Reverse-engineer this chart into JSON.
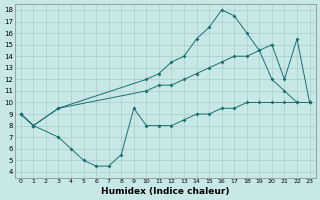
{
  "background_color": "#c8e8e8",
  "grid_color": "#a8cccc",
  "line_color": "#1a7070",
  "xlabel": "Humidex (Indice chaleur)",
  "xlim": [
    -0.5,
    23.5
  ],
  "ylim": [
    3.5,
    18.5
  ],
  "xticks": [
    0,
    1,
    2,
    3,
    4,
    5,
    6,
    7,
    8,
    9,
    10,
    11,
    12,
    13,
    14,
    15,
    16,
    17,
    18,
    19,
    20,
    21,
    22,
    23
  ],
  "yticks": [
    4,
    5,
    6,
    7,
    8,
    9,
    10,
    11,
    12,
    13,
    14,
    15,
    16,
    17,
    18
  ],
  "line1_x": [
    0,
    1,
    3,
    10,
    11,
    12,
    13,
    14,
    15,
    16,
    17,
    18,
    19,
    20,
    21,
    22,
    23
  ],
  "line1_y": [
    9.0,
    8.0,
    9.5,
    12.0,
    12.5,
    13.5,
    14.0,
    15.5,
    16.5,
    18.0,
    17.5,
    16.0,
    14.5,
    12.0,
    11.0,
    10.0,
    10.0
  ],
  "line2_x": [
    0,
    1,
    3,
    10,
    11,
    12,
    13,
    14,
    15,
    16,
    17,
    18,
    19,
    20,
    21,
    22,
    23
  ],
  "line2_y": [
    9.0,
    8.0,
    9.5,
    11.0,
    11.5,
    11.5,
    12.0,
    12.5,
    13.0,
    13.5,
    14.0,
    14.0,
    14.5,
    15.0,
    12.0,
    15.5,
    10.0
  ],
  "line3_x": [
    0,
    1,
    3,
    4,
    5,
    6,
    7,
    8,
    9,
    10,
    11,
    12,
    13,
    14,
    15,
    16,
    17,
    18,
    19,
    20,
    21,
    22,
    23
  ],
  "line3_y": [
    9.0,
    8.0,
    7.0,
    6.0,
    5.0,
    4.5,
    4.5,
    5.5,
    9.5,
    8.0,
    8.0,
    8.0,
    8.5,
    9.0,
    9.0,
    9.5,
    9.5,
    10.0,
    10.0,
    10.0,
    10.0,
    10.0,
    10.0
  ]
}
